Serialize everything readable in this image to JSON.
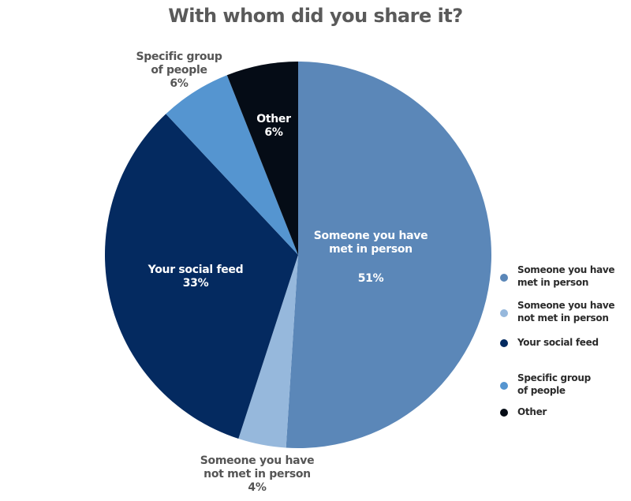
{
  "chart_data": {
    "type": "pie",
    "title": "With whom did you share it?",
    "slices": [
      {
        "name": "Someone you have met in person",
        "label_lines": [
          "Someone you have",
          "met in person"
        ],
        "value_label": "51%",
        "value": 51,
        "color": "#5b87b8",
        "label_color": "#ffffff"
      },
      {
        "name": "Someone you have not met in person",
        "label_lines": [
          "Someone you have",
          "not met in person"
        ],
        "value_label": "4%",
        "value": 4,
        "color": "#96b8dc",
        "label_color": "#555555"
      },
      {
        "name": "Your social feed",
        "label_lines": [
          "Your social feed"
        ],
        "value_label": "33%",
        "value": 33,
        "color": "#042a60",
        "label_color": "#ffffff"
      },
      {
        "name": "Specific group of people",
        "label_lines": [
          "Specific group",
          "of people"
        ],
        "value_label": "6%",
        "value": 6,
        "color": "#5595d0",
        "label_color": "#555555"
      },
      {
        "name": "Other",
        "label_lines": [
          "Other"
        ],
        "value_label": "6%",
        "value": 6,
        "color": "#050c16",
        "label_color": "#ffffff"
      }
    ],
    "legend": {
      "position": "right",
      "items": [
        {
          "lines": [
            "Someone you have",
            "met in person"
          ],
          "color": "#5b87b8"
        },
        {
          "lines": [
            "Someone you have",
            "not met in person"
          ],
          "color": "#96b8dc"
        },
        {
          "lines": [
            "Your social feed"
          ],
          "color": "#042a60"
        },
        {
          "lines": [
            "Specific group",
            "of people"
          ],
          "color": "#5595d0"
        },
        {
          "lines": [
            "Other"
          ],
          "color": "#050c16"
        }
      ]
    }
  }
}
